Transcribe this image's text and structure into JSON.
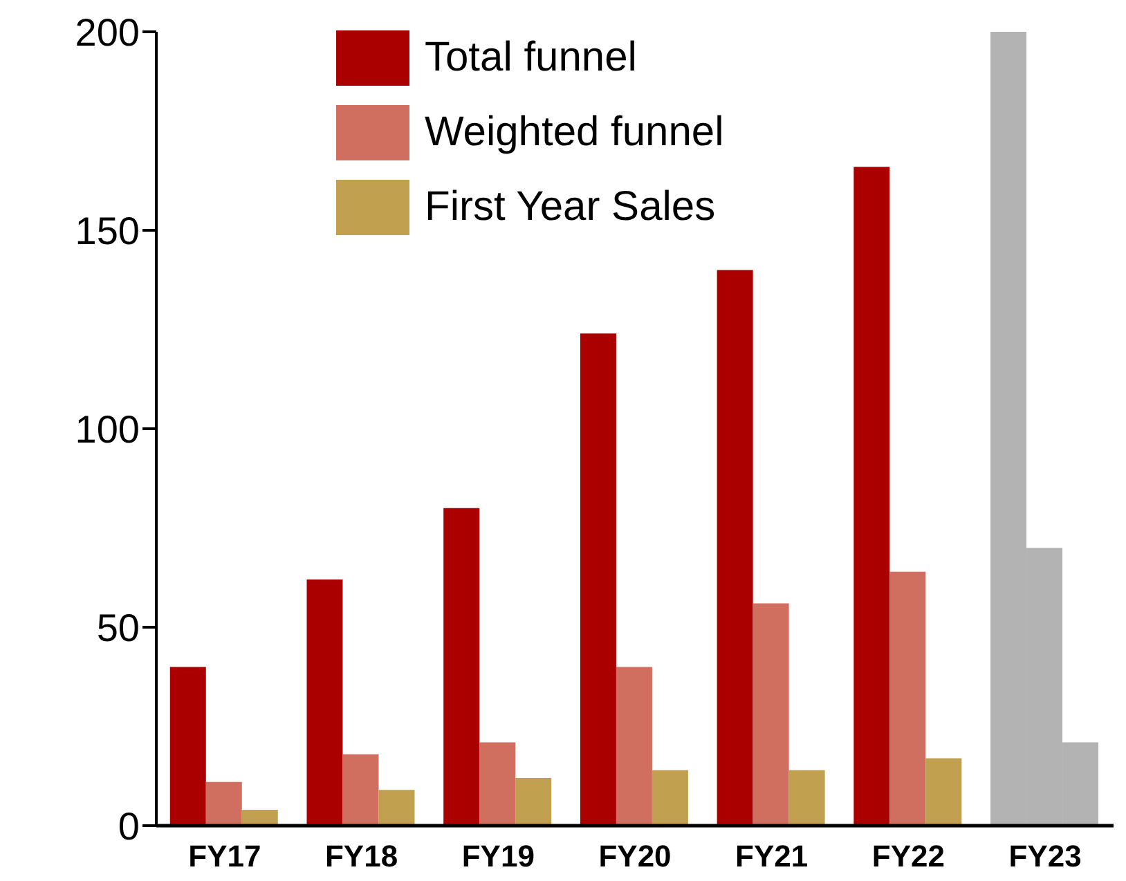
{
  "chart_data": {
    "type": "bar",
    "categories": [
      "FY17",
      "FY18",
      "FY19",
      "FY20",
      "FY21",
      "FY22",
      "FY23"
    ],
    "series": [
      {
        "name": "Total funnel",
        "color": "#ab0000",
        "colors": [
          "#ab0000",
          "#ab0000",
          "#ab0000",
          "#ab0000",
          "#ab0000",
          "#ab0000",
          "#b3b3b3"
        ],
        "values": [
          40,
          62,
          80,
          124,
          140,
          166,
          200
        ]
      },
      {
        "name": "Weighted funnel",
        "color": "#d06e5f",
        "colors": [
          "#d06e5f",
          "#d06e5f",
          "#d06e5f",
          "#d06e5f",
          "#d06e5f",
          "#d06e5f",
          "#b3b3b3"
        ],
        "values": [
          11,
          18,
          21,
          40,
          56,
          64,
          70
        ]
      },
      {
        "name": "First Year Sales",
        "color": "#c1a050",
        "colors": [
          "#c1a050",
          "#c1a050",
          "#c1a050",
          "#c1a050",
          "#c1a050",
          "#c1a050",
          "#b3b3b3"
        ],
        "values": [
          4,
          9,
          12,
          14,
          14,
          17,
          21
        ]
      }
    ],
    "ylim": [
      0,
      200
    ],
    "yticks": [
      0,
      50,
      100,
      150,
      200
    ],
    "grid": false,
    "legend": "top"
  }
}
